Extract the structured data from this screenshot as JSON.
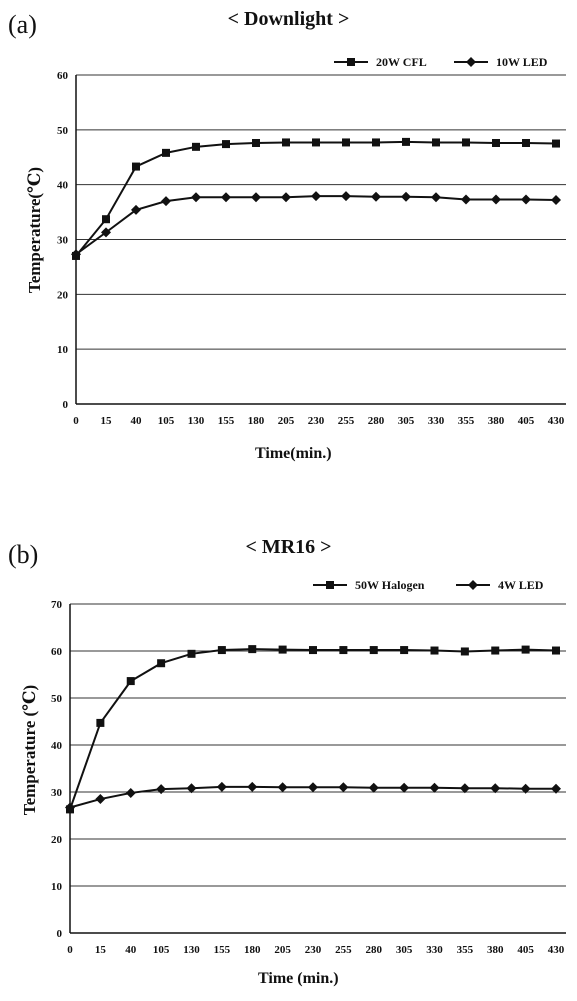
{
  "chart_data": [
    {
      "type": "line",
      "panel_label": "(a)",
      "title": "< Downlight >",
      "xlabel": "Time(min.)",
      "ylabel": "Temperature(℃)",
      "categories": [
        "0",
        "15",
        "40",
        "105",
        "130",
        "155",
        "180",
        "205",
        "230",
        "255",
        "280",
        "305",
        "330",
        "355",
        "380",
        "405",
        "430"
      ],
      "ylim": [
        0,
        60
      ],
      "yticks": [
        0,
        10,
        20,
        30,
        40,
        50,
        60
      ],
      "grid": true,
      "legend_position": "top-right",
      "series": [
        {
          "name": "20W CFL",
          "marker": "square",
          "values": [
            27,
            33.7,
            43.3,
            45.8,
            46.9,
            47.4,
            47.6,
            47.7,
            47.7,
            47.7,
            47.7,
            47.8,
            47.7,
            47.7,
            47.6,
            47.6,
            47.5
          ]
        },
        {
          "name": "10W LED",
          "marker": "diamond",
          "values": [
            27.3,
            31.3,
            35.4,
            37,
            37.7,
            37.7,
            37.7,
            37.7,
            37.9,
            37.9,
            37.8,
            37.8,
            37.7,
            37.3,
            37.3,
            37.3,
            37.2
          ]
        }
      ]
    },
    {
      "type": "line",
      "panel_label": "(b)",
      "title": "< MR16 >",
      "xlabel": "Time (min.)",
      "ylabel": "Temperature (℃)",
      "categories": [
        "0",
        "15",
        "40",
        "105",
        "130",
        "155",
        "180",
        "205",
        "230",
        "255",
        "280",
        "305",
        "330",
        "355",
        "380",
        "405",
        "430"
      ],
      "ylim": [
        0,
        70
      ],
      "yticks": [
        0,
        10,
        20,
        30,
        40,
        50,
        60,
        70
      ],
      "grid": true,
      "legend_position": "top-right",
      "series": [
        {
          "name": "50W Halogen",
          "marker": "square",
          "values": [
            26.3,
            44.7,
            53.6,
            57.4,
            59.4,
            60.2,
            60.4,
            60.3,
            60.2,
            60.2,
            60.2,
            60.2,
            60.1,
            59.9,
            60.1,
            60.3,
            60.1
          ]
        },
        {
          "name": "4W LED",
          "marker": "diamond",
          "values": [
            26.7,
            28.5,
            29.8,
            30.6,
            30.8,
            31.1,
            31.1,
            31.0,
            31.0,
            31.0,
            30.9,
            30.9,
            30.9,
            30.8,
            30.8,
            30.7,
            30.7
          ]
        }
      ]
    }
  ]
}
